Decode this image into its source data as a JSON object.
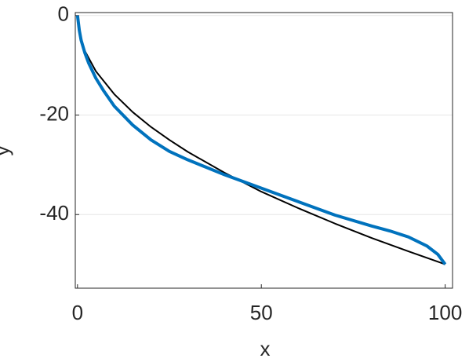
{
  "chart_data": {
    "type": "line",
    "xlabel": "x",
    "ylabel": "y",
    "xlim": [
      -0.6,
      102
    ],
    "xticks": [
      0,
      50,
      100
    ],
    "ylim": [
      -54.8,
      0.6
    ],
    "yticks": [
      0,
      -20,
      -40
    ],
    "grid": true,
    "series": [
      {
        "color": "#000000",
        "x": [
          0,
          1,
          2,
          5,
          10,
          15,
          20,
          25,
          30,
          40,
          50,
          60,
          70,
          80,
          90,
          100
        ],
        "values": [
          0,
          -5,
          -7.1,
          -11.2,
          -15.8,
          -19.4,
          -22.4,
          -25,
          -27.4,
          -31.6,
          -35.4,
          -38.7,
          -41.8,
          -44.7,
          -47.4,
          -50
        ]
      },
      {
        "color": "#0072bd",
        "x": [
          0,
          0.5,
          1,
          2,
          3,
          5,
          7,
          10,
          15,
          20,
          25,
          30,
          35,
          40,
          50,
          60,
          70,
          80,
          85,
          90,
          95,
          98,
          100
        ],
        "values": [
          0,
          -3,
          -5,
          -7.5,
          -9.5,
          -12.6,
          -15,
          -18.2,
          -22,
          -25,
          -27.3,
          -29,
          -30.5,
          -32,
          -34.7,
          -37.4,
          -40.1,
          -42.3,
          -43.3,
          -44.5,
          -46.3,
          -48,
          -50
        ]
      }
    ]
  }
}
